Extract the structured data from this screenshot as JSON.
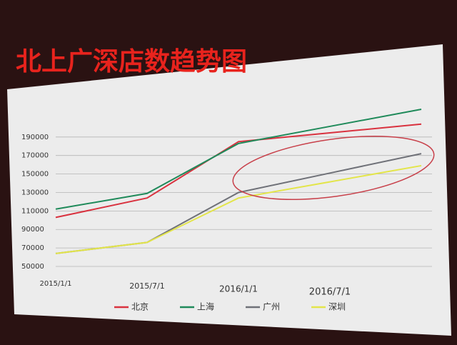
{
  "chart_data": {
    "type": "line",
    "title": "北上广深店数趋势图",
    "categories": [
      "2015/1/1",
      "2015/7/1",
      "2016/1/1",
      "2016/7/1",
      null
    ],
    "series": [
      {
        "name": "北京",
        "color": "#d9323f",
        "values": [
          103000,
          124000,
          185000,
          194500,
          204000
        ]
      },
      {
        "name": "上海",
        "color": "#1f8a5a",
        "values": [
          112000,
          129000,
          183000,
          201500,
          220000
        ]
      },
      {
        "name": "广州",
        "color": "#6f7178",
        "values": [
          64000,
          76000,
          130000,
          151000,
          172000
        ]
      },
      {
        "name": "深圳",
        "color": "#e3e54a",
        "values": [
          64000,
          76000,
          124000,
          141500,
          159000
        ]
      }
    ],
    "ylim": [
      50000,
      220000
    ],
    "yticks": [
      50000,
      70000,
      90000,
      110000,
      130000,
      150000,
      170000,
      190000
    ],
    "grid": true
  }
}
